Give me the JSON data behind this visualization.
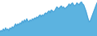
{
  "values": [
    22,
    25,
    23,
    28,
    24,
    30,
    26,
    28,
    24,
    30,
    28,
    32,
    30,
    34,
    38,
    34,
    38,
    36,
    40,
    38,
    44,
    40,
    46,
    42,
    48,
    44,
    42,
    46,
    44,
    48,
    46,
    50,
    48,
    52,
    50,
    54,
    56,
    52,
    56,
    54,
    58,
    60,
    58,
    62,
    64,
    60,
    66,
    64,
    62,
    64,
    68,
    72,
    70,
    68,
    72,
    74,
    70,
    72,
    68,
    70,
    72,
    74,
    78,
    74,
    78,
    80,
    76,
    74,
    76,
    80,
    78,
    76,
    80,
    82,
    78,
    76,
    70,
    64,
    56,
    48,
    42,
    44,
    50,
    56,
    62,
    68,
    74,
    80
  ],
  "line_color": "#4aa3d8",
  "fill_color": "#5cb3e0",
  "background_color": "#ffffff"
}
